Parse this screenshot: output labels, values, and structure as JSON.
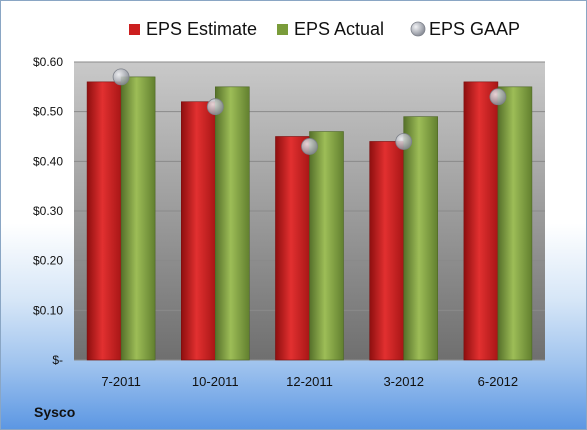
{
  "chart_data": {
    "type": "bar",
    "categories": [
      "7-2011",
      "10-2011",
      "12-2011",
      "3-2012",
      "6-2012"
    ],
    "series": [
      {
        "name": "EPS Estimate",
        "type": "bar",
        "color": "#cc1f1f",
        "values": [
          0.56,
          0.52,
          0.45,
          0.44,
          0.56
        ]
      },
      {
        "name": "EPS Actual",
        "type": "bar",
        "color": "#7a9c3a",
        "values": [
          0.57,
          0.55,
          0.46,
          0.49,
          0.55
        ]
      },
      {
        "name": "EPS GAAP",
        "type": "scatter",
        "color": "#b8bcc6",
        "values": [
          0.57,
          0.51,
          0.43,
          0.44,
          0.53
        ]
      }
    ],
    "ylim": [
      0,
      0.6
    ],
    "yticks": [
      0,
      0.1,
      0.2,
      0.3,
      0.4,
      0.5,
      0.6
    ],
    "ytick_labels": [
      "$-",
      "$0.10",
      "$0.20",
      "$0.30",
      "$0.40",
      "$0.50",
      "$0.60"
    ],
    "grid": true,
    "legend_position": "top"
  },
  "company": "Sysco"
}
